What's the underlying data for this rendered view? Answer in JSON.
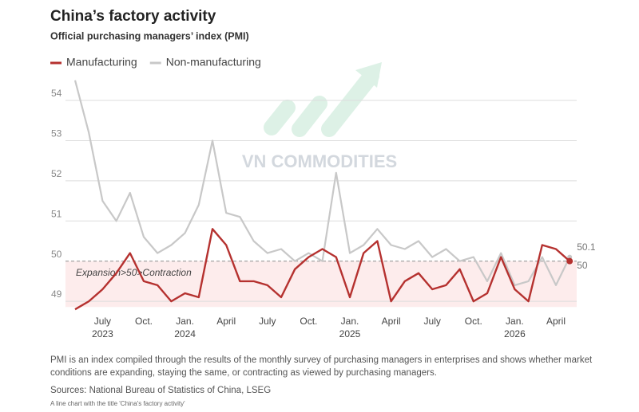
{
  "chart_data": {
    "type": "line",
    "title": "China’s factory activity",
    "subtitle": "Official purchasing managers’ index (PMI)",
    "watermark": "VN COMMODITIES",
    "annotation": "Expansion>50>Contraction",
    "threshold": 50,
    "categories": [
      null,
      null,
      "July",
      null,
      null,
      "Oct.",
      null,
      null,
      "Jan.",
      null,
      null,
      "April",
      null,
      null,
      "July",
      null,
      null,
      "Oct.",
      null,
      null,
      "Jan.",
      null,
      null,
      "April",
      null,
      null,
      "July",
      null,
      null,
      "Oct.",
      null,
      null,
      "Jan.",
      null,
      null,
      "April",
      null
    ],
    "years": [
      null,
      null,
      "2023",
      null,
      null,
      null,
      null,
      null,
      "2024",
      null,
      null,
      null,
      null,
      null,
      null,
      null,
      null,
      null,
      null,
      null,
      "2025",
      null,
      null,
      null,
      null,
      null,
      null,
      null,
      null,
      null,
      null,
      null,
      "2026",
      null,
      null,
      null,
      null
    ],
    "series": [
      {
        "name": "Manufacturing",
        "color": "#b5312f",
        "values": [
          48.8,
          49.0,
          49.3,
          49.7,
          50.2,
          49.5,
          49.4,
          49.0,
          49.2,
          49.1,
          50.8,
          50.4,
          49.5,
          49.5,
          49.4,
          49.1,
          49.8,
          50.1,
          50.3,
          50.1,
          49.1,
          50.2,
          50.5,
          49.0,
          49.5,
          49.7,
          49.3,
          49.4,
          49.8,
          49.0,
          49.2,
          50.1,
          49.3,
          49.0,
          50.4,
          50.3,
          50
        ]
      },
      {
        "name": "Non-manufacturing",
        "color": "#c8c8c8",
        "values": [
          54.5,
          53.2,
          51.5,
          51.0,
          51.7,
          50.6,
          50.2,
          50.4,
          50.7,
          51.4,
          53.0,
          51.2,
          51.1,
          50.5,
          50.2,
          50.3,
          50.0,
          50.2,
          50.0,
          52.2,
          50.2,
          50.4,
          50.8,
          50.4,
          50.3,
          50.5,
          50.1,
          50.3,
          50.0,
          50.1,
          49.5,
          50.2,
          49.4,
          49.5,
          50.1,
          49.4,
          50.1
        ]
      }
    ],
    "ylim": [
      48.7,
      54.6
    ],
    "yticks": [
      49,
      50,
      51,
      52,
      53,
      54
    ],
    "grid": true,
    "note": "PMI is an index compiled through the results of the monthly survey of purchasing managers in enterprises and shows whether market conditions are expanding, staying the same, or contracting as viewed by purchasing managers.",
    "sources": "Sources: National Bureau of Statistics of China, LSEG",
    "caption": "A line chart with the title 'China's factory activity'"
  }
}
